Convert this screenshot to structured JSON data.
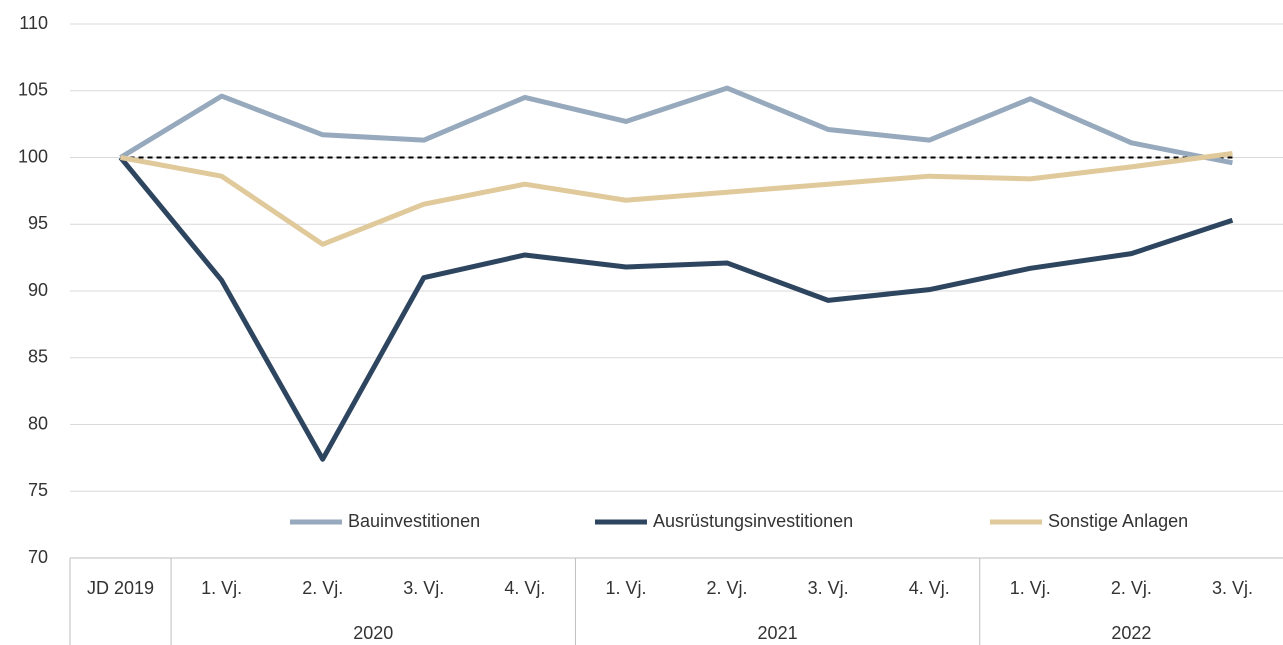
{
  "chart_data": {
    "type": "line",
    "categories": [
      "JD 2019",
      "1. Vj.",
      "2. Vj.",
      "3. Vj.",
      "4. Vj.",
      "1. Vj.",
      "2. Vj.",
      "3. Vj.",
      "4. Vj.",
      "1. Vj.",
      "2. Vj.",
      "3. Vj."
    ],
    "category_groups": [
      null,
      "2020",
      "2020",
      "2020",
      "2020",
      "2021",
      "2021",
      "2021",
      "2021",
      "2022",
      "2022",
      "2022"
    ],
    "series": [
      {
        "name": "Bauinvestitionen",
        "color": "#97a9bd",
        "values": [
          100,
          104.6,
          101.7,
          101.3,
          104.5,
          102.7,
          105.2,
          102.1,
          101.3,
          104.4,
          101.1,
          99.6
        ]
      },
      {
        "name": "Ausrüstungsinvestitionen",
        "color": "#2e4560",
        "values": [
          100,
          90.8,
          77.4,
          91.0,
          92.7,
          91.8,
          92.1,
          89.3,
          90.1,
          91.7,
          92.8,
          95.3
        ]
      },
      {
        "name": "Sonstige Anlagen",
        "color": "#e0c99a",
        "values": [
          100,
          98.6,
          93.5,
          96.5,
          98.0,
          96.8,
          97.4,
          98.0,
          98.6,
          98.4,
          99.3,
          100.3
        ]
      }
    ],
    "reference_line": 100,
    "ylim": [
      70,
      110
    ],
    "yticks": [
      70,
      75,
      80,
      85,
      90,
      95,
      100,
      105,
      110
    ],
    "grid": true,
    "legend": "bottom"
  }
}
